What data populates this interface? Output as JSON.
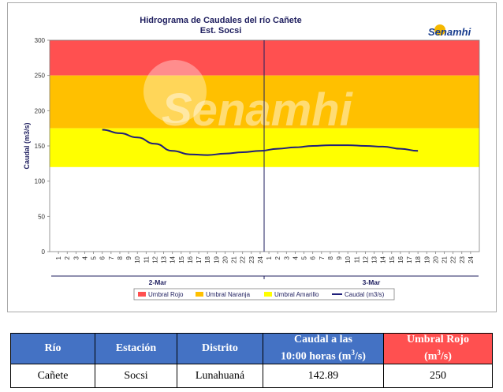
{
  "chart_data": {
    "type": "line",
    "title": "Hidrograma de Caudales  del río Cañete",
    "subtitle": "Est. Socsi",
    "ylabel": "Caudal  (m3/s)",
    "ylim": [
      0,
      300
    ],
    "yticks": [
      0,
      50,
      100,
      150,
      200,
      250,
      300
    ],
    "x_hour_labels": [
      "1",
      "2",
      "3",
      "4",
      "5",
      "6",
      "7",
      "8",
      "9",
      "10",
      "11",
      "12",
      "13",
      "14",
      "15",
      "16",
      "17",
      "18",
      "19",
      "20",
      "21",
      "22",
      "23",
      "24",
      "1",
      "2",
      "3",
      "4",
      "5",
      "6",
      "7",
      "8",
      "9",
      "10",
      "11",
      "12",
      "13",
      "14",
      "15",
      "16",
      "17",
      "18",
      "19",
      "20",
      "21",
      "22",
      "23",
      "24"
    ],
    "days": [
      "2-Mar",
      "3-Mar"
    ],
    "thresholds": [
      {
        "name": "Umbral Rojo",
        "from": 250,
        "to": 300,
        "color": "#ff5050"
      },
      {
        "name": "Umbral Naranja",
        "from": 175,
        "to": 250,
        "color": "#ffc000"
      },
      {
        "name": "Umbral Amarillo",
        "from": 120,
        "to": 175,
        "color": "#ffff00"
      }
    ],
    "series": [
      {
        "name": "Caudal (m3/s)",
        "color": "#1f1f7a",
        "points": [
          {
            "day": "2-Mar",
            "hour": 6,
            "value": 173
          },
          {
            "day": "2-Mar",
            "hour": 8,
            "value": 168
          },
          {
            "day": "2-Mar",
            "hour": 10,
            "value": 162
          },
          {
            "day": "2-Mar",
            "hour": 12,
            "value": 153
          },
          {
            "day": "2-Mar",
            "hour": 14,
            "value": 143
          },
          {
            "day": "2-Mar",
            "hour": 16,
            "value": 138
          },
          {
            "day": "2-Mar",
            "hour": 18,
            "value": 137
          },
          {
            "day": "2-Mar",
            "hour": 20,
            "value": 139
          },
          {
            "day": "2-Mar",
            "hour": 22,
            "value": 141
          },
          {
            "day": "2-Mar",
            "hour": 24,
            "value": 143
          },
          {
            "day": "3-Mar",
            "hour": 2,
            "value": 146
          },
          {
            "day": "3-Mar",
            "hour": 4,
            "value": 148
          },
          {
            "day": "3-Mar",
            "hour": 6,
            "value": 150
          },
          {
            "day": "3-Mar",
            "hour": 8,
            "value": 151
          },
          {
            "day": "3-Mar",
            "hour": 10,
            "value": 151
          },
          {
            "day": "3-Mar",
            "hour": 12,
            "value": 150
          },
          {
            "day": "3-Mar",
            "hour": 14,
            "value": 149
          },
          {
            "day": "3-Mar",
            "hour": 16,
            "value": 146
          },
          {
            "day": "3-Mar",
            "hour": 18,
            "value": 143
          }
        ]
      }
    ],
    "legend": [
      "Umbral Rojo",
      "Umbral Naranja",
      "Umbral Amarillo",
      "Caudal (m3/s)"
    ],
    "legend_position": "bottom",
    "grid": false
  },
  "watermark": "Senamhi",
  "logo": {
    "text": "Senamhi"
  },
  "table": {
    "headers": {
      "rio": "Río",
      "estacion": "Estación",
      "distrito": "Distrito",
      "caudal_line1": "Caudal a las",
      "caudal_line2": "10:00 horas (m",
      "caudal_sup": "3",
      "caudal_end": "/s)",
      "umbral_line1": "Umbral Rojo",
      "umbral_line2": "(m",
      "umbral_sup": "3",
      "umbral_end": "/s)"
    },
    "row": {
      "rio": "Cañete",
      "estacion": "Socsi",
      "distrito": "Lunahuaná",
      "caudal": "142.89",
      "umbral": "250"
    }
  }
}
